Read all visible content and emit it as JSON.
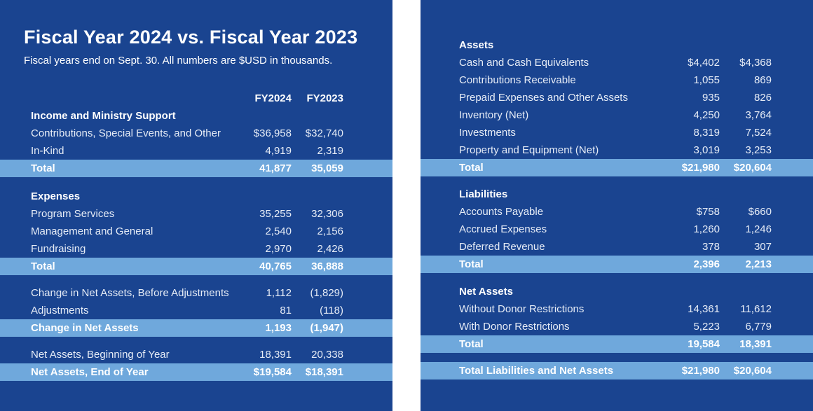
{
  "title": "Fiscal Year 2024 vs. Fiscal Year 2023",
  "subtitle": "Fiscal years end on Sept. 30. All numbers are $USD in thousands.",
  "colors": {
    "background": "#1a4490",
    "total_band": "#6fa8dc",
    "text": "#ffffff"
  },
  "columns": [
    "FY2024",
    "FY2023"
  ],
  "left_sections": [
    {
      "heading": "Income and Ministry Support",
      "rows": [
        {
          "label": "Contributions, Special Events, and Other",
          "fy2024": "$36,958",
          "fy2023": "$32,740"
        },
        {
          "label": "In-Kind",
          "fy2024": "4,919",
          "fy2023": "2,319"
        }
      ],
      "total": {
        "label": "Total",
        "fy2024": "41,877",
        "fy2023": "35,059"
      }
    },
    {
      "heading": "Expenses",
      "rows": [
        {
          "label": "Program Services",
          "fy2024": "35,255",
          "fy2023": "32,306"
        },
        {
          "label": "Management and General",
          "fy2024": "2,540",
          "fy2023": "2,156"
        },
        {
          "label": "Fundraising",
          "fy2024": "2,970",
          "fy2023": "2,426"
        }
      ],
      "total": {
        "label": "Total",
        "fy2024": "40,765",
        "fy2023": "36,888"
      }
    },
    {
      "rows": [
        {
          "label": "Change in Net Assets, Before Adjustments",
          "fy2024": "1,112",
          "fy2023": "(1,829)"
        },
        {
          "label": "Adjustments",
          "fy2024": "81",
          "fy2023": "(118)"
        }
      ],
      "total": {
        "label": "Change in Net Assets",
        "fy2024": "1,193",
        "fy2023": "(1,947)"
      }
    },
    {
      "rows": [
        {
          "label": "Net Assets, Beginning of Year",
          "fy2024": "18,391",
          "fy2023": "20,338"
        }
      ],
      "total": {
        "label": "Net Assets, End of Year",
        "fy2024": "$19,584",
        "fy2023": "$18,391"
      }
    }
  ],
  "right_sections": [
    {
      "heading": "Assets",
      "rows": [
        {
          "label": "Cash and Cash Equivalents",
          "fy2024": "$4,402",
          "fy2023": "$4,368"
        },
        {
          "label": "Contributions Receivable",
          "fy2024": "1,055",
          "fy2023": "869"
        },
        {
          "label": "Prepaid Expenses and Other Assets",
          "fy2024": "935",
          "fy2023": "826"
        },
        {
          "label": "Inventory (Net)",
          "fy2024": "4,250",
          "fy2023": "3,764"
        },
        {
          "label": "Investments",
          "fy2024": "8,319",
          "fy2023": "7,524"
        },
        {
          "label": "Property and Equipment (Net)",
          "fy2024": "3,019",
          "fy2023": "3,253"
        }
      ],
      "total": {
        "label": "Total",
        "fy2024": "$21,980",
        "fy2023": "$20,604"
      }
    },
    {
      "heading": "Liabilities",
      "rows": [
        {
          "label": "Accounts Payable",
          "fy2024": "$758",
          "fy2023": "$660"
        },
        {
          "label": "Accrued Expenses",
          "fy2024": "1,260",
          "fy2023": "1,246"
        },
        {
          "label": "Deferred Revenue",
          "fy2024": "378",
          "fy2023": "307"
        }
      ],
      "total": {
        "label": "Total",
        "fy2024": "2,396",
        "fy2023": "2,213"
      }
    },
    {
      "heading": "Net Assets",
      "rows": [
        {
          "label": "Without Donor Restrictions",
          "fy2024": "14,361",
          "fy2023": "11,612"
        },
        {
          "label": "With Donor Restrictions",
          "fy2024": "5,223",
          "fy2023": "6,779"
        }
      ],
      "total": {
        "label": "Total",
        "fy2024": "19,584",
        "fy2023": "18,391"
      }
    },
    {
      "rows": [],
      "total": {
        "label": "Total Liabilities and Net Assets",
        "fy2024": "$21,980",
        "fy2023": "$20,604"
      }
    }
  ]
}
